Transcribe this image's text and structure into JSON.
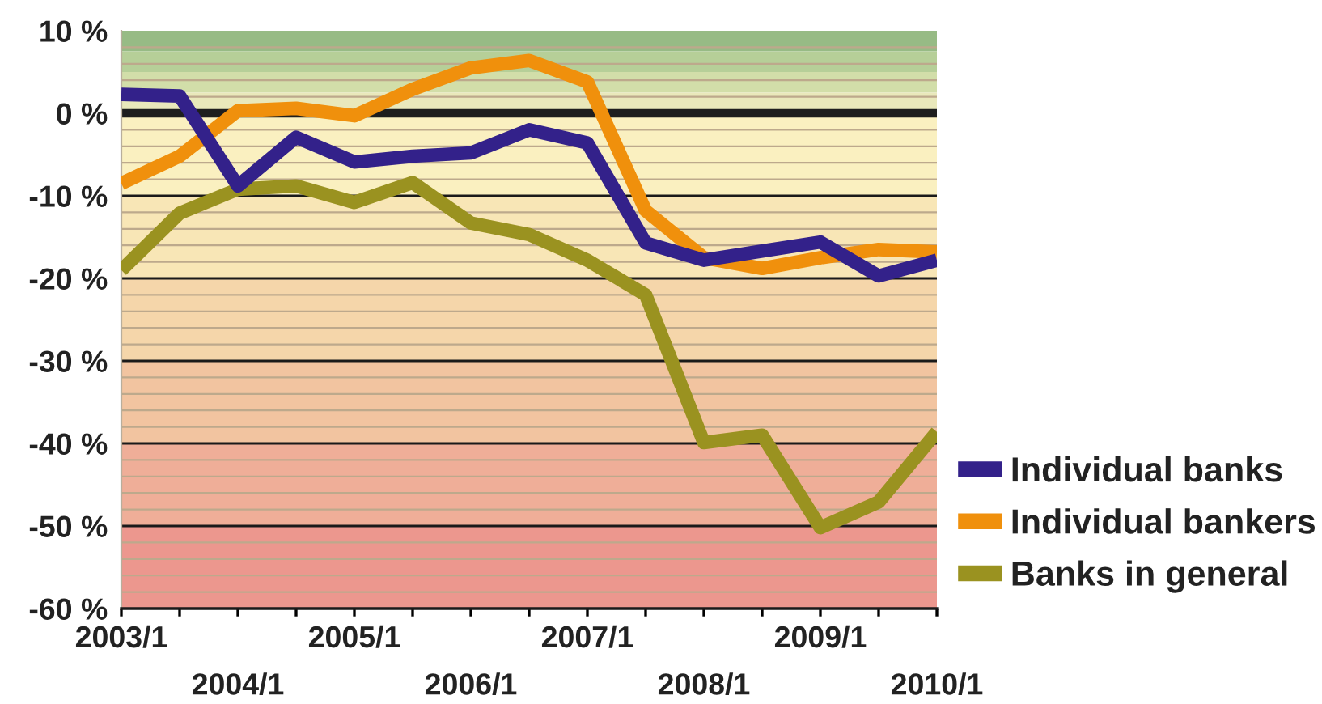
{
  "chart_data": {
    "type": "line",
    "categories": [
      "2003/1",
      null,
      "2004/1",
      null,
      "2005/1",
      null,
      "2006/1",
      null,
      "2007/1",
      null,
      "2008/1",
      null,
      "2009/1",
      null,
      "2010/1"
    ],
    "series": [
      {
        "name": "Individual banks",
        "color": "#33218a",
        "values": [
          2.3,
          2.1,
          -8.8,
          -2.9,
          -5.9,
          -5.2,
          -4.8,
          -2.0,
          -3.6,
          -15.7,
          -17.8,
          -16.7,
          -15.6,
          -19.7,
          -17.8
        ]
      },
      {
        "name": "Individual bankers",
        "color": "#f0900c",
        "values": [
          -8.5,
          -5.2,
          0.3,
          0.6,
          -0.3,
          2.9,
          5.5,
          6.4,
          3.8,
          -11.8,
          -17.5,
          -18.8,
          -17.5,
          -16.5,
          -16.8
        ]
      },
      {
        "name": "Banks in general",
        "color": "#9a9220",
        "values": [
          -19.0,
          -12.1,
          -9.2,
          -8.8,
          -10.8,
          -8.4,
          -13.3,
          -14.7,
          -17.8,
          -22.0,
          -39.9,
          -39.0,
          -50.2,
          -47.1,
          -38.6
        ]
      }
    ],
    "ylim": [
      -60,
      10
    ],
    "yticks": [
      {
        "value": 10,
        "label": "10 %"
      },
      {
        "value": 8,
        "label": null
      },
      {
        "value": 6,
        "label": null
      },
      {
        "value": 4,
        "label": null
      },
      {
        "value": 2,
        "label": null
      },
      {
        "value": 0,
        "label": "0 %"
      },
      {
        "value": -2,
        "label": null
      },
      {
        "value": -4,
        "label": null
      },
      {
        "value": -6,
        "label": null
      },
      {
        "value": -8,
        "label": null
      },
      {
        "value": -10,
        "label": "-10 %"
      },
      {
        "value": -12,
        "label": null
      },
      {
        "value": -14,
        "label": null
      },
      {
        "value": -16,
        "label": null
      },
      {
        "value": -18,
        "label": null
      },
      {
        "value": -20,
        "label": "-20 %"
      },
      {
        "value": -22,
        "label": null
      },
      {
        "value": -24,
        "label": null
      },
      {
        "value": -26,
        "label": null
      },
      {
        "value": -28,
        "label": null
      },
      {
        "value": -30,
        "label": "-30 %"
      },
      {
        "value": -32,
        "label": null
      },
      {
        "value": -34,
        "label": null
      },
      {
        "value": -36,
        "label": null
      },
      {
        "value": -38,
        "label": null
      },
      {
        "value": -40,
        "label": "-40 %"
      },
      {
        "value": -42,
        "label": null
      },
      {
        "value": -44,
        "label": null
      },
      {
        "value": -46,
        "label": null
      },
      {
        "value": -48,
        "label": null
      },
      {
        "value": -50,
        "label": "-50 %"
      },
      {
        "value": -52,
        "label": null
      },
      {
        "value": -54,
        "label": null
      },
      {
        "value": -56,
        "label": null
      },
      {
        "value": -58,
        "label": null
      },
      {
        "value": -60,
        "label": "-60 %"
      }
    ],
    "ref_lines": [
      {
        "axis": "y",
        "value": 0,
        "color": "#1e1e1e"
      }
    ],
    "bands": [
      {
        "axis": "y",
        "from": 7.5,
        "to": 10,
        "color": "#97bb85"
      },
      {
        "axis": "y",
        "from": 5,
        "to": 7.5,
        "color": "#b6cf98"
      },
      {
        "axis": "y",
        "from": 2.5,
        "to": 5,
        "color": "#d2dea9"
      },
      {
        "axis": "y",
        "from": 0,
        "to": 2.5,
        "color": "#e9e8bb"
      },
      {
        "axis": "y",
        "from": -10,
        "to": 0,
        "color": "#faf0c0"
      },
      {
        "axis": "y",
        "from": -20,
        "to": -10,
        "color": "#f8e6b6"
      },
      {
        "axis": "y",
        "from": -30,
        "to": -20,
        "color": "#f5d6aa"
      },
      {
        "axis": "y",
        "from": -40,
        "to": -30,
        "color": "#f2c4a0"
      },
      {
        "axis": "y",
        "from": -50,
        "to": -40,
        "color": "#efae98"
      },
      {
        "axis": "y",
        "from": -60,
        "to": -50,
        "color": "#ec978e"
      }
    ],
    "grid": "y",
    "legend": "bottom right"
  }
}
